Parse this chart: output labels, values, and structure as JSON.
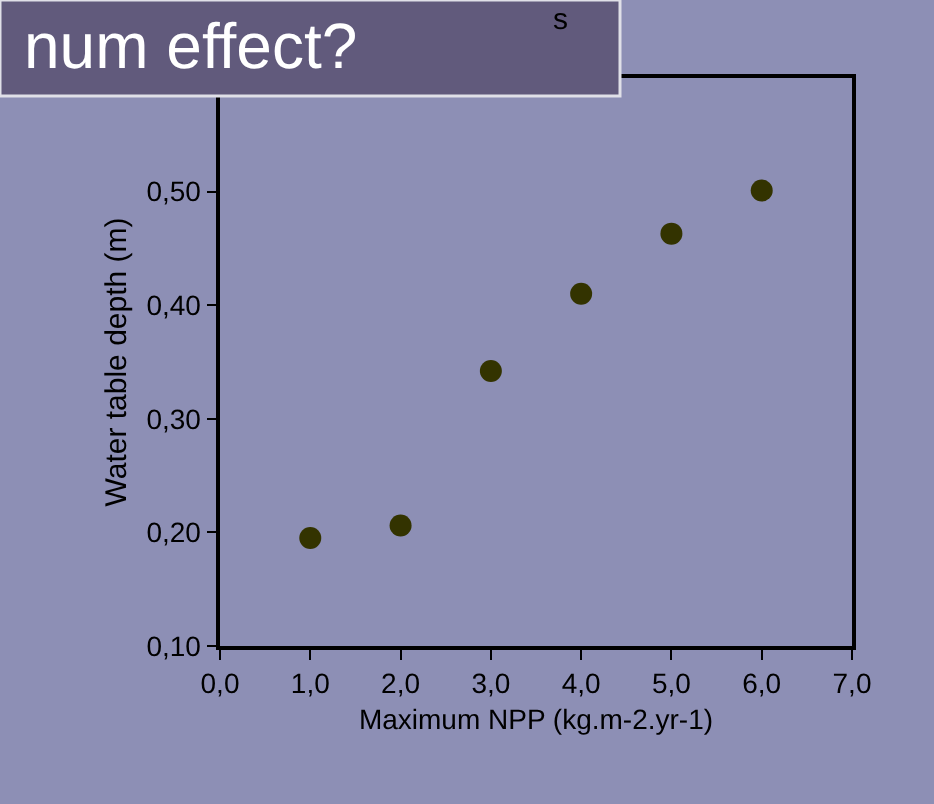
{
  "chart_data": {
    "type": "scatter",
    "title": "s",
    "xlabel": "Maximum NPP (kg.m-2.yr-1)",
    "ylabel": "Water table depth (m)",
    "annotations": [
      "num effect?"
    ],
    "x": [
      1,
      2,
      3,
      4,
      5,
      6
    ],
    "series": [
      {
        "color": "#333300",
        "values": [
          0.195,
          0.206,
          0.342,
          0.41,
          0.463,
          0.501
        ]
      }
    ],
    "xlim": [
      0,
      7
    ],
    "ylim": [
      0.1,
      0.6
    ],
    "xticks": [
      {
        "value": 0,
        "label": "0,0"
      },
      {
        "value": 1,
        "label": "1,0"
      },
      {
        "value": 2,
        "label": "2,0"
      },
      {
        "value": 3,
        "label": "3,0"
      },
      {
        "value": 4,
        "label": "4,0"
      },
      {
        "value": 5,
        "label": "5,0"
      },
      {
        "value": 6,
        "label": "6,0"
      },
      {
        "value": 7,
        "label": "7,0"
      }
    ],
    "yticks": [
      {
        "value": 0.1,
        "label": "0,10"
      },
      {
        "value": 0.2,
        "label": "0,20"
      },
      {
        "value": 0.3,
        "label": "0,30"
      },
      {
        "value": 0.4,
        "label": "0,40"
      },
      {
        "value": 0.5,
        "label": "0,50"
      }
    ],
    "grid": false,
    "marker": "circle"
  }
}
